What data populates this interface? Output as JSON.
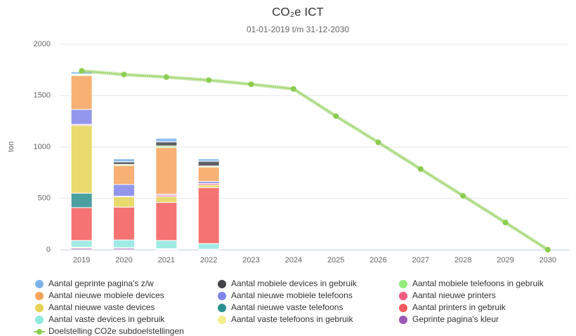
{
  "chart_data": {
    "type": "bar",
    "stacked": true,
    "title": "CO₂e ICT",
    "subtitle": "01-01-2019 t/m 31-12-2030",
    "y_label": "ton",
    "categories": [
      "2019",
      "2020",
      "2021",
      "2022",
      "2023",
      "2024",
      "2025",
      "2026",
      "2027",
      "2028",
      "2029",
      "2030"
    ],
    "ylim": [
      0,
      2000
    ],
    "yticks": [
      0,
      500,
      1000,
      1500,
      2000
    ],
    "grid": true,
    "legend": "bottom",
    "series": [
      {
        "name": "Aantal geprinte pagina's z/w",
        "color": "#7cb5ec",
        "values": [
          20,
          30,
          35,
          25,
          null,
          null,
          null,
          null,
          null,
          null,
          null,
          null
        ]
      },
      {
        "name": "Aantal mobiele devices in gebruik",
        "color": "#434348",
        "values": [
          5,
          25,
          40,
          45,
          null,
          null,
          null,
          null,
          null,
          null,
          null,
          null
        ]
      },
      {
        "name": "Aantal mobiele telefoons in gebruik",
        "color": "#90ed7d",
        "values": [
          10,
          10,
          15,
          10,
          null,
          null,
          null,
          null,
          null,
          null,
          null,
          null
        ]
      },
      {
        "name": "Aantal nieuwe mobiele devices",
        "color": "#f7a35c",
        "values": [
          330,
          185,
          455,
          140,
          null,
          null,
          null,
          null,
          null,
          null,
          null,
          null
        ]
      },
      {
        "name": "Aantal nieuwe mobiele telefoons",
        "color": "#8085e9",
        "values": [
          145,
          115,
          10,
          20,
          null,
          null,
          null,
          null,
          null,
          null,
          null,
          null
        ]
      },
      {
        "name": "Aantal nieuwe printers",
        "color": "#f15c80",
        "values": [
          10,
          5,
          15,
          15,
          null,
          null,
          null,
          null,
          null,
          null,
          null,
          null
        ]
      },
      {
        "name": "Aantal nieuwe vaste devices",
        "color": "#e4d354",
        "values": [
          660,
          100,
          55,
          25,
          null,
          null,
          null,
          null,
          null,
          null,
          null,
          null
        ]
      },
      {
        "name": "Aantal nieuwe vaste telefoons",
        "color": "#2b908f",
        "values": [
          140,
          0,
          0,
          0,
          null,
          null,
          null,
          null,
          null,
          null,
          null,
          null
        ]
      },
      {
        "name": "Aantal printers in gebruik",
        "color": "#f45b5b",
        "values": [
          320,
          320,
          370,
          545,
          null,
          null,
          null,
          null,
          null,
          null,
          null,
          null
        ]
      },
      {
        "name": "Aantal vaste devices in gebruik",
        "color": "#91e8e1",
        "values": [
          65,
          75,
          80,
          55,
          null,
          null,
          null,
          null,
          null,
          null,
          null,
          null
        ]
      },
      {
        "name": "Aantal vaste telefoons in gebruik",
        "color": "#f2ee8a",
        "values": [
          10,
          5,
          5,
          0,
          null,
          null,
          null,
          null,
          null,
          null,
          null,
          null
        ]
      },
      {
        "name": "Geprinte pagina's kleur",
        "color": "#9b59b6",
        "values": [
          15,
          15,
          5,
          5,
          null,
          null,
          null,
          null,
          null,
          null,
          null,
          null
        ]
      },
      {
        "name": "Doelstelling CO2e subdoelstellingen",
        "type": "line",
        "color": "#8bcd50",
        "values": [
          1740,
          1705,
          1680,
          1650,
          1610,
          1565,
          1300,
          1045,
          785,
          525,
          265,
          0
        ]
      }
    ]
  }
}
